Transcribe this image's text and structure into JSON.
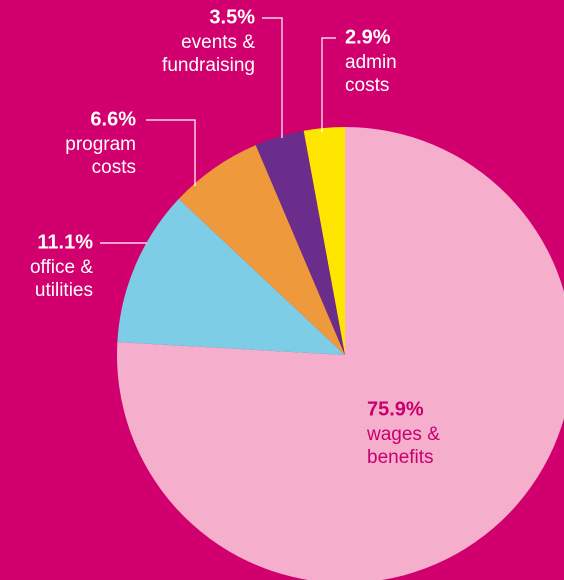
{
  "chart_data": {
    "type": "pie",
    "categories": [
      [
        "wages &",
        "benefits"
      ],
      [
        "office &",
        "utilities"
      ],
      [
        "program",
        "costs"
      ],
      [
        "events &",
        "fundraising"
      ],
      [
        "admin",
        "costs"
      ]
    ],
    "values": [
      75.9,
      11.1,
      6.6,
      3.5,
      2.9
    ],
    "value_labels": [
      "75.9%",
      "11.1%",
      "6.6%",
      "3.5%",
      "2.9%"
    ],
    "colors": [
      "#f5afcc",
      "#7ecde6",
      "#ee9a3c",
      "#6a2d8c",
      "#ffe600"
    ],
    "label_colors": [
      "#c8006e",
      "#ffffff",
      "#ffffff",
      "#ffffff",
      "#ffffff"
    ]
  }
}
